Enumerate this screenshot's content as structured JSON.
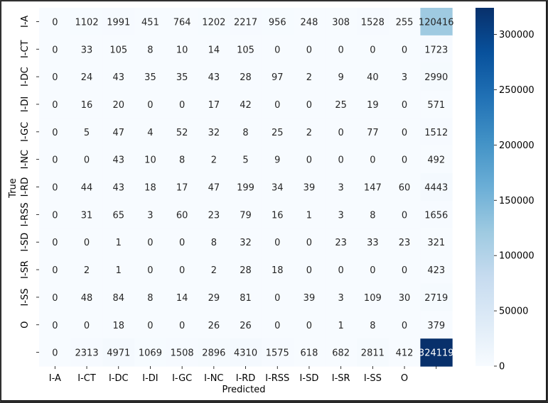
{
  "chart_data": {
    "type": "heatmap",
    "title": "",
    "xlabel": "Predicted",
    "ylabel": "True",
    "x_labels": [
      "I-A",
      "I-CT",
      "I-DC",
      "I-DI",
      "I-GC",
      "I-NC",
      "I-RD",
      "I-RSS",
      "I-SD",
      "I-SR",
      "I-SS",
      "O",
      ""
    ],
    "y_labels": [
      "I-A",
      "I-CT",
      "I-DC",
      "I-DI",
      "I-GC",
      "I-NC",
      "I-RD",
      "I-RSS",
      "I-SD",
      "I-SR",
      "I-SS",
      "O",
      ""
    ],
    "matrix": [
      [
        0,
        1102,
        1991,
        451,
        764,
        1202,
        2217,
        956,
        248,
        308,
        1528,
        255,
        120416
      ],
      [
        0,
        33,
        105,
        8,
        10,
        14,
        105,
        0,
        0,
        0,
        0,
        0,
        1723
      ],
      [
        0,
        24,
        43,
        35,
        35,
        43,
        28,
        97,
        2,
        9,
        40,
        3,
        2990
      ],
      [
        0,
        16,
        20,
        0,
        0,
        17,
        42,
        0,
        0,
        25,
        19,
        0,
        571
      ],
      [
        0,
        5,
        47,
        4,
        52,
        32,
        8,
        25,
        2,
        0,
        77,
        0,
        1512
      ],
      [
        0,
        0,
        43,
        10,
        8,
        2,
        5,
        9,
        0,
        0,
        0,
        0,
        492
      ],
      [
        0,
        44,
        43,
        18,
        17,
        47,
        199,
        34,
        39,
        3,
        147,
        60,
        4443
      ],
      [
        0,
        31,
        65,
        3,
        60,
        23,
        79,
        16,
        1,
        3,
        8,
        0,
        1656
      ],
      [
        0,
        0,
        1,
        0,
        0,
        8,
        32,
        0,
        0,
        23,
        33,
        23,
        321
      ],
      [
        0,
        2,
        1,
        0,
        0,
        2,
        28,
        18,
        0,
        0,
        0,
        0,
        423
      ],
      [
        0,
        48,
        84,
        8,
        14,
        29,
        81,
        0,
        39,
        3,
        109,
        30,
        2719
      ],
      [
        0,
        0,
        18,
        0,
        0,
        26,
        26,
        0,
        0,
        1,
        8,
        0,
        379
      ],
      [
        0,
        2313,
        4971,
        1069,
        1508,
        2896,
        4310,
        1575,
        618,
        682,
        2811,
        412,
        324119
      ]
    ],
    "color_range": [
      0,
      324119
    ],
    "colormap": [
      "#f7fbff",
      "#deebf7",
      "#c6dbef",
      "#9ecae1",
      "#6baed6",
      "#4292c6",
      "#2171b5",
      "#08519c",
      "#08306b"
    ],
    "colorbar_ticks": [
      0,
      50000,
      100000,
      150000,
      200000,
      250000,
      300000
    ],
    "colorbar_tick_labels": [
      "0",
      "50000",
      "100000",
      "150000",
      "200000",
      "250000",
      "300000"
    ]
  }
}
